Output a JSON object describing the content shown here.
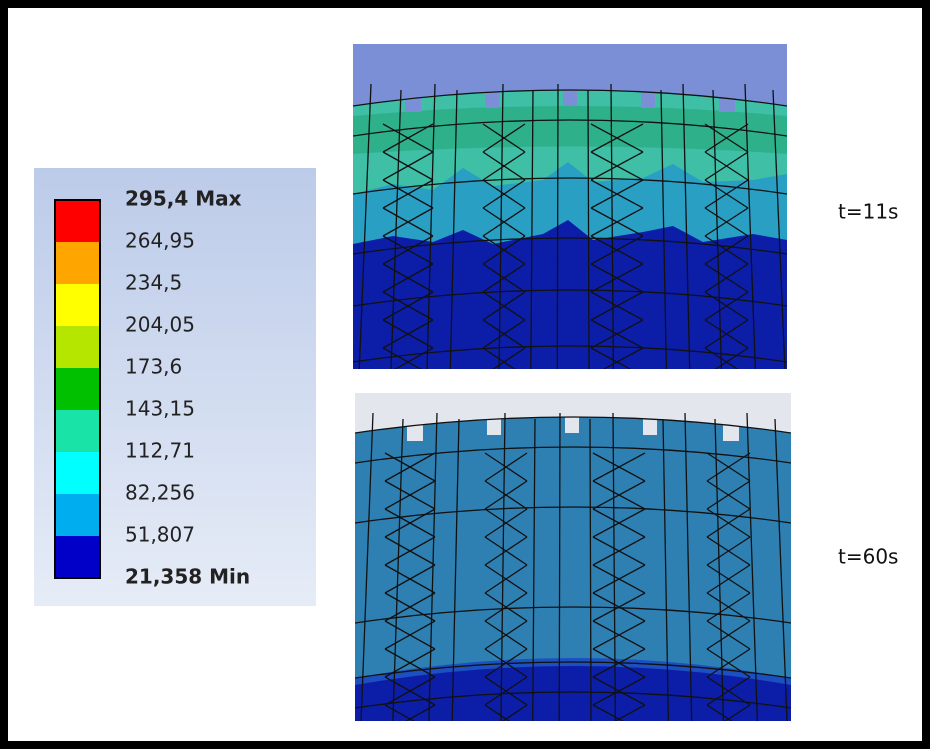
{
  "legend": {
    "labels": [
      "295,4 Max",
      "264,95",
      "234,5",
      "204,05",
      "173,6",
      "143,15",
      "112,71",
      "82,256",
      "51,807",
      "21,358 Min"
    ],
    "colors": [
      "#ff0000",
      "#ffa500",
      "#ffff00",
      "#b4e600",
      "#00c000",
      "#19e3a6",
      "#00ffff",
      "#00aef0",
      "#0000c8"
    ]
  },
  "panels": [
    {
      "label": "t=11s"
    },
    {
      "label": "t=60s"
    }
  ]
}
